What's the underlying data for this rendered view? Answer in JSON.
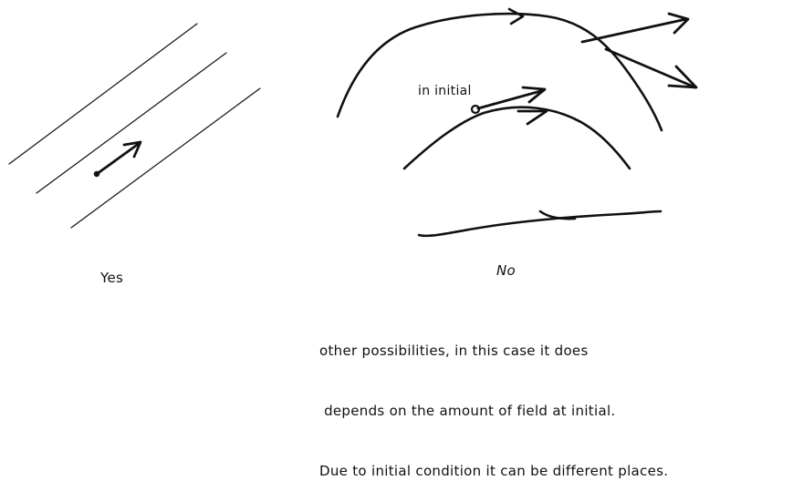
{
  "labels": {
    "yes": "Yes",
    "no": "No",
    "in_initial": "in initial"
  },
  "note": {
    "lines": [
      "other possibilities, in this case it does",
      " depends on the amount of field at initial.",
      "Due to initial condition it can be different places."
    ]
  },
  "colors": {
    "ink": "#111111",
    "background": "#ffffff"
  }
}
